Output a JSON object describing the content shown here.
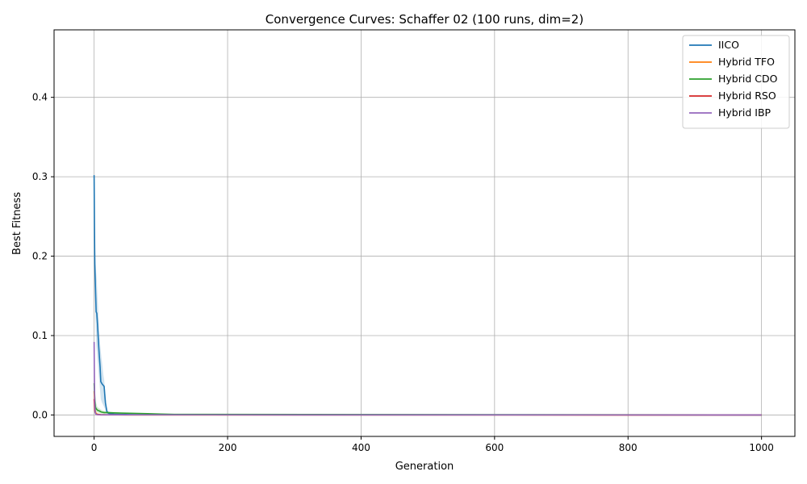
{
  "chart_data": {
    "type": "line",
    "title": "Convergence Curves: Schaffer 02 (100 runs, dim=2)",
    "xlabel": "Generation",
    "ylabel": "Best Fitness",
    "xlim": [
      -60,
      1050
    ],
    "ylim": [
      -0.027,
      0.485
    ],
    "xticks": [
      0,
      200,
      400,
      600,
      800,
      1000
    ],
    "xtick_labels": [
      "0",
      "200",
      "400",
      "600",
      "800",
      "1000"
    ],
    "yticks": [
      0.0,
      0.1,
      0.2,
      0.3,
      0.4
    ],
    "ytick_labels": [
      "0.0",
      "0.1",
      "0.2",
      "0.3",
      "0.4"
    ],
    "grid": true,
    "legend_position": "top-right",
    "series": [
      {
        "name": "IICO",
        "color": "#1f77b4",
        "x": [
          0,
          0.5,
          1,
          2,
          3,
          4,
          5,
          6,
          7,
          8,
          9,
          10,
          12,
          14,
          15,
          16,
          17,
          18,
          19,
          20,
          22,
          25,
          30,
          40,
          60,
          100,
          1000
        ],
        "y": [
          0.302,
          0.24,
          0.19,
          0.16,
          0.13,
          0.128,
          0.115,
          0.1,
          0.085,
          0.072,
          0.06,
          0.042,
          0.039,
          0.037,
          0.036,
          0.025,
          0.015,
          0.01,
          0.005,
          0.003,
          0.002,
          0.0015,
          0.001,
          0.0007,
          0.0004,
          0.0002,
          0.0
        ],
        "band_upper": [
          0.302,
          0.26,
          0.22,
          0.2,
          0.18,
          0.17,
          0.15,
          0.135,
          0.12,
          0.1,
          0.09,
          0.08,
          0.065,
          0.05,
          0.045,
          0.035,
          0.025,
          0.015,
          0.01,
          0.006,
          0.004,
          0.003,
          0.002,
          0.0015,
          0.001,
          0.0005,
          0.0
        ],
        "band_lower": [
          0.302,
          0.2,
          0.15,
          0.12,
          0.09,
          0.08,
          0.07,
          0.06,
          0.05,
          0.04,
          0.03,
          0.02,
          0.015,
          0.012,
          0.01,
          0.008,
          0.006,
          0.004,
          0.002,
          0.001,
          0.0,
          0.0,
          0.0,
          0.0,
          0.0,
          0.0,
          0.0
        ]
      },
      {
        "name": "Hybrid TFO",
        "color": "#ff7f0e",
        "x": [
          0,
          1,
          2,
          3,
          5,
          10,
          20,
          50,
          1000
        ],
        "y": [
          0.03,
          0.01,
          0.004,
          0.002,
          0.001,
          0.0005,
          0.0003,
          0.0001,
          0.0
        ]
      },
      {
        "name": "Hybrid CDO",
        "color": "#2ca02c",
        "x": [
          0,
          1,
          2,
          3,
          5,
          8,
          10,
          12,
          15,
          20,
          25,
          30,
          40,
          60,
          80,
          100,
          120,
          1000
        ],
        "y": [
          0.04,
          0.02,
          0.01,
          0.008,
          0.006,
          0.005,
          0.004,
          0.0035,
          0.003,
          0.003,
          0.0028,
          0.0026,
          0.0024,
          0.002,
          0.0017,
          0.0012,
          0.0008,
          0.0
        ],
        "band_upper": [
          0.05,
          0.03,
          0.02,
          0.015,
          0.01,
          0.008,
          0.007,
          0.006,
          0.005,
          0.0045,
          0.004,
          0.0035,
          0.003,
          0.0026,
          0.0022,
          0.0016,
          0.001,
          0.0
        ],
        "band_lower": [
          0.03,
          0.012,
          0.006,
          0.004,
          0.003,
          0.0025,
          0.002,
          0.0018,
          0.0015,
          0.0015,
          0.0015,
          0.0015,
          0.0014,
          0.0012,
          0.001,
          0.0008,
          0.0005,
          0.0
        ]
      },
      {
        "name": "Hybrid RSO",
        "color": "#d62728",
        "x": [
          0,
          1,
          2,
          3,
          5,
          10,
          1000
        ],
        "y": [
          0.02,
          0.005,
          0.002,
          0.001,
          0.0005,
          0.0001,
          0.0
        ]
      },
      {
        "name": "Hybrid IBP",
        "color": "#9467bd",
        "x": [
          0,
          0.3,
          0.6,
          1,
          1.5,
          2,
          3,
          5,
          10,
          1000
        ],
        "y": [
          0.092,
          0.06,
          0.035,
          0.015,
          0.006,
          0.002,
          0.001,
          0.0005,
          0.0002,
          0.0
        ]
      }
    ]
  }
}
